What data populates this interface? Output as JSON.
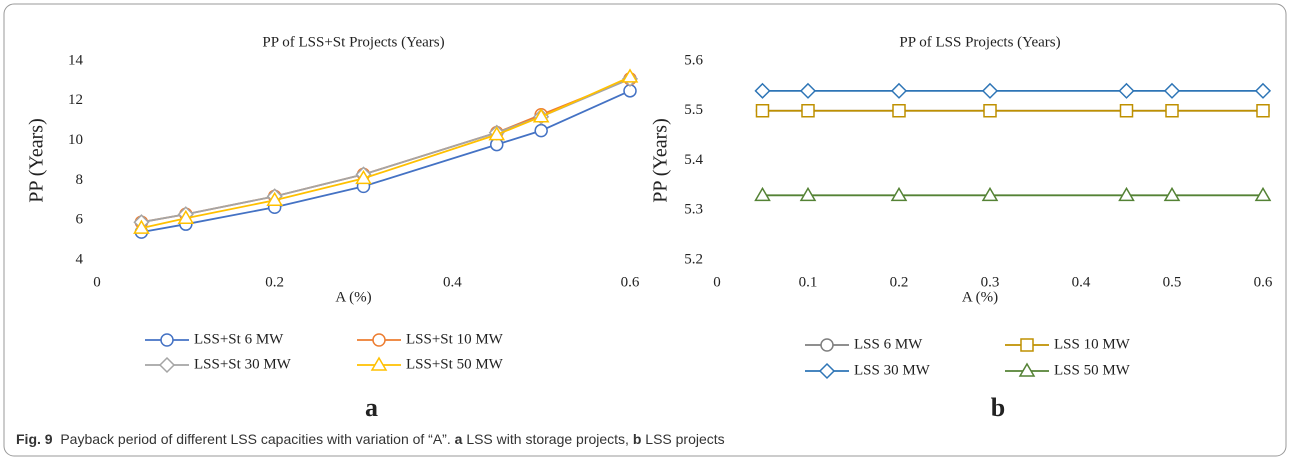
{
  "chart_data": [
    {
      "type": "line",
      "title": "PP of LSS+St Projects  (Years)",
      "x_label": "A (%)",
      "y_label": "PP (Years)",
      "panel_label": "a",
      "x": [
        0.05,
        0.1,
        0.2,
        0.3,
        0.45,
        0.5,
        0.6
      ],
      "xlim": [
        0,
        0.6
      ],
      "xticks": [
        0,
        0.2,
        0.4,
        0.6
      ],
      "ylim": [
        4,
        14
      ],
      "yticks": [
        4,
        6,
        8,
        10,
        12,
        14
      ],
      "grid": false,
      "series": [
        {
          "name": "LSS+St 6 MW",
          "color": "#4472c4",
          "marker": "circle",
          "values": [
            5.4,
            5.8,
            6.65,
            7.7,
            9.8,
            10.5,
            12.5
          ]
        },
        {
          "name": "LSS+St 10 MW",
          "color": "#ed7d31",
          "marker": "circle",
          "values": [
            5.9,
            6.3,
            7.2,
            8.3,
            10.4,
            11.3,
            13.1
          ]
        },
        {
          "name": "LSS+St 30 MW",
          "color": "#a5a5a5",
          "marker": "diamond",
          "values": [
            5.9,
            6.3,
            7.2,
            8.3,
            10.4,
            11.2,
            13.1
          ]
        },
        {
          "name": "LSS+St 50 MW",
          "color": "#ffc000",
          "marker": "triangle",
          "values": [
            5.6,
            6.1,
            7.0,
            8.1,
            10.3,
            11.2,
            13.2
          ]
        }
      ]
    },
    {
      "type": "line",
      "title": "PP of LSS Projects (Years)",
      "x_label": "A (%)",
      "y_label": "PP (Years)",
      "panel_label": "b",
      "x": [
        0.05,
        0.1,
        0.2,
        0.3,
        0.45,
        0.5,
        0.6
      ],
      "xlim": [
        0,
        0.6
      ],
      "xticks": [
        0,
        0.1,
        0.2,
        0.3,
        0.4,
        0.5,
        0.6
      ],
      "ylim": [
        5.2,
        5.6
      ],
      "yticks": [
        5.2,
        5.3,
        5.4,
        5.5,
        5.6
      ],
      "grid": false,
      "series": [
        {
          "name": "LSS 6 MW",
          "color": "#7f7f7f",
          "marker": "circle",
          "values": [
            5.5,
            5.5,
            5.5,
            5.5,
            5.5,
            5.5,
            5.5
          ]
        },
        {
          "name": "LSS 10 MW",
          "color": "#bf9000",
          "marker": "square",
          "values": [
            5.5,
            5.5,
            5.5,
            5.5,
            5.5,
            5.5,
            5.5
          ]
        },
        {
          "name": "LSS 30 MW",
          "color": "#2e75b6",
          "marker": "diamond",
          "values": [
            5.54,
            5.54,
            5.54,
            5.54,
            5.54,
            5.54,
            5.54
          ]
        },
        {
          "name": "LSS 50 MW",
          "color": "#548235",
          "marker": "triangle",
          "values": [
            5.33,
            5.33,
            5.33,
            5.33,
            5.33,
            5.33,
            5.33
          ]
        }
      ]
    }
  ],
  "caption": {
    "label": "Fig. 9",
    "text": "Payback period of different LSS capacities with variation of “A”.",
    "a": "a",
    "a_text": "LSS with storage projects,",
    "b": "b",
    "b_text": "LSS projects"
  }
}
